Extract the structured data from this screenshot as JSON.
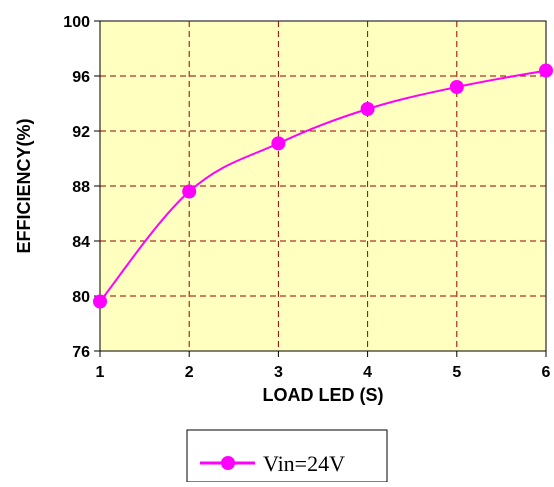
{
  "chart_data": {
    "type": "line",
    "xlabel": "LOAD LED (S)",
    "ylabel": "EFFICIENCY(%)",
    "x": [
      1,
      2,
      3,
      4,
      5,
      6
    ],
    "xlim": [
      1,
      6
    ],
    "ylim": [
      76,
      100
    ],
    "yticks": [
      76,
      80,
      84,
      88,
      92,
      96,
      100
    ],
    "xticks": [
      1,
      2,
      3,
      4,
      5,
      6
    ],
    "grid": true,
    "legend_position": "bottom-center",
    "series": [
      {
        "name": "Vin=24V",
        "values": [
          79.6,
          87.6,
          91.1,
          93.6,
          95.2,
          96.4
        ],
        "color": "#ff00ff",
        "marker": "circle"
      }
    ],
    "plot_background": "#ffffc0",
    "grid_color": "#990000"
  }
}
